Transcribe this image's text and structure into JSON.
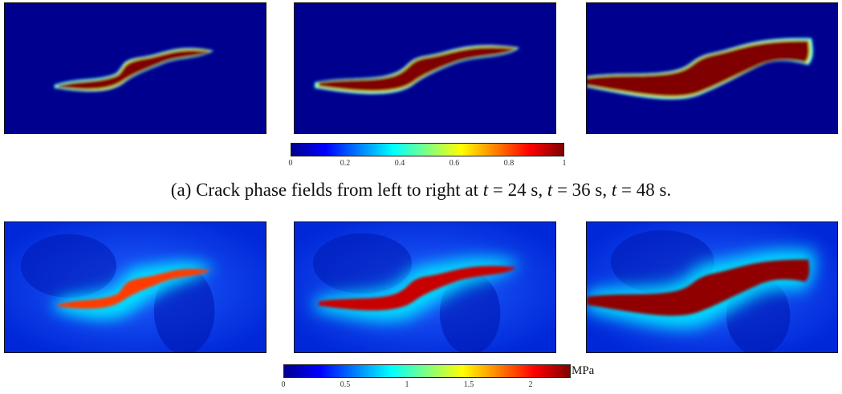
{
  "colormap": {
    "stops": [
      "#00008f",
      "#0000ff",
      "#0080ff",
      "#00ffff",
      "#80ff80",
      "#ffff00",
      "#ff8000",
      "#ff0000",
      "#800000"
    ]
  },
  "row_a": {
    "caption": {
      "prefix": "(a) Crack phase fields from left to right at ",
      "var1": "t",
      "eq1": " = 24 s, ",
      "var2": "t",
      "eq2": " = 36 s, ",
      "var3": "t",
      "eq3": " = 48 s."
    },
    "colorbar": {
      "ticks": [
        "0",
        "0.2",
        "0.4",
        "0.6",
        "0.8",
        "1"
      ]
    },
    "panels": [
      {
        "time": "24 s",
        "growth": 0.0
      },
      {
        "time": "36 s",
        "growth": 0.5
      },
      {
        "time": "48 s",
        "growth": 1.0
      }
    ]
  },
  "row_b": {
    "colorbar": {
      "ticks": [
        "0",
        "0.5",
        "1",
        "1.5",
        "2"
      ],
      "unit": "MPa"
    },
    "panels": [
      {
        "time": "24 s",
        "growth": 0.0
      },
      {
        "time": "36 s",
        "growth": 0.5
      },
      {
        "time": "48 s",
        "growth": 1.0
      }
    ]
  }
}
